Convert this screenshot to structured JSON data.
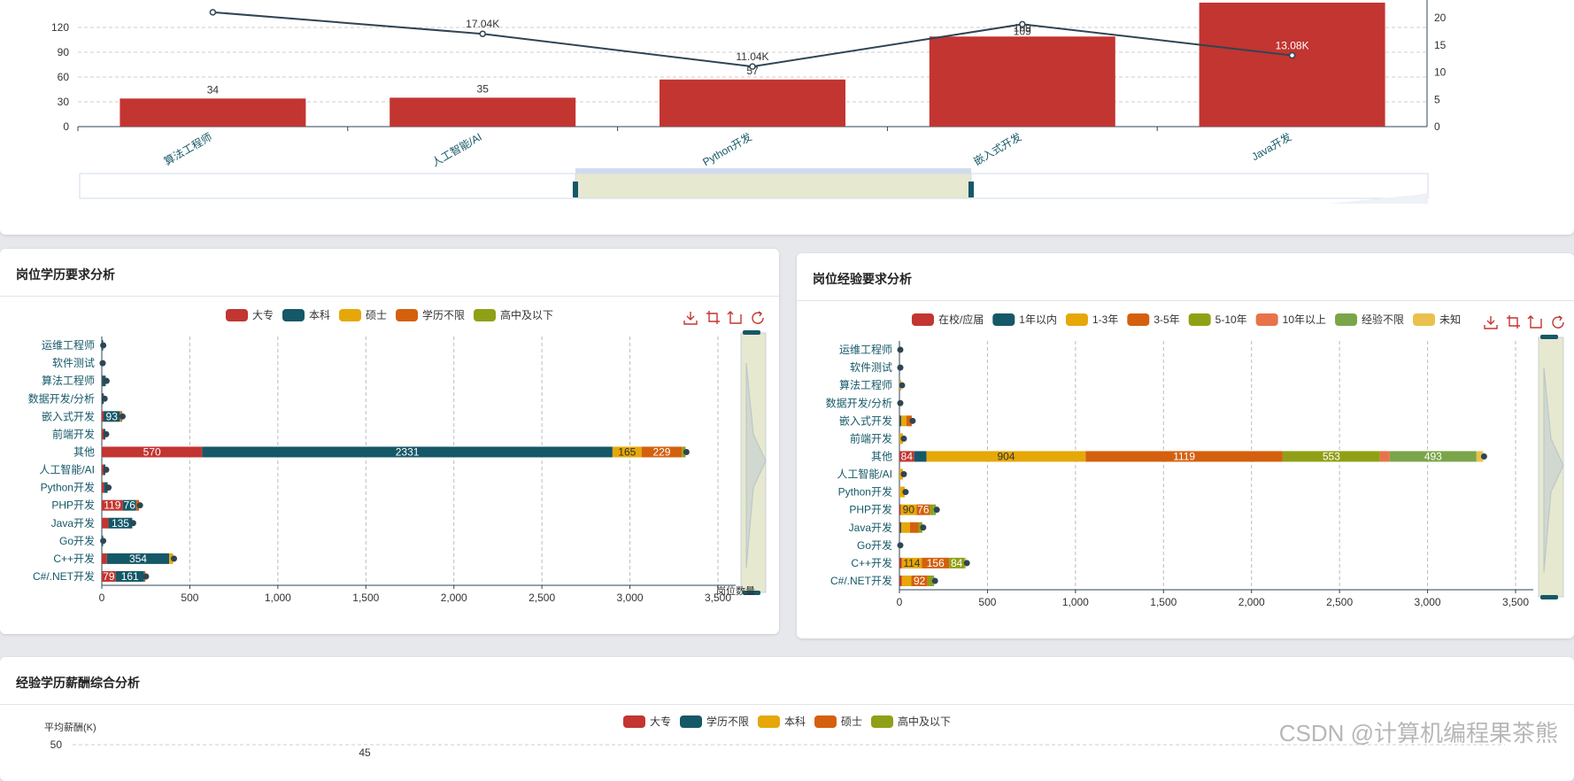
{
  "chart_data": [
    {
      "type": "bar",
      "title": "",
      "categories": [
        "算法工程师",
        "人工智能/AI",
        "Python开发",
        "嵌入式开发",
        "Java开发"
      ],
      "series": [
        {
          "values": [
            34,
            35,
            57,
            109,
            150
          ]
        },
        {
          "values": [
            21,
            17.04,
            11.04,
            18.8,
            13.08
          ]
        }
      ],
      "line_labels": [
        "",
        "17.04K",
        "11.04K",
        "",
        "13.08K"
      ],
      "yticks_left": [
        0,
        30,
        60,
        90,
        120
      ],
      "yticks_right": [
        0,
        5,
        10,
        15,
        20
      ],
      "ylim_left": [
        0,
        150
      ],
      "ylim_right": [
        0,
        20
      ],
      "colors": {
        "bar": "#c23531",
        "line": "#2f4554"
      }
    },
    {
      "type": "bar",
      "title": "岗位学历要求分析",
      "orientation": "horizontal-stacked",
      "categories": [
        "运维工程师",
        "软件测试",
        "算法工程师",
        "数据开发/分析",
        "嵌入式开发",
        "前端开发",
        "其他",
        "人工智能/AI",
        "Python开发",
        "PHP开发",
        "Java开发",
        "Go开发",
        "C++开发",
        "C#/.NET开发"
      ],
      "series": [
        {
          "name": "大专",
          "values": [
            0,
            0,
            2,
            1,
            10,
            10,
            570,
            10,
            13,
            119,
            38,
            0,
            29,
            79
          ]
        },
        {
          "name": "本科",
          "values": [
            3,
            0,
            20,
            10,
            93,
            10,
            2331,
            10,
            20,
            76,
            135,
            3,
            354,
            161
          ]
        },
        {
          "name": "硕士",
          "values": [
            0,
            0,
            0,
            0,
            5,
            0,
            165,
            0,
            0,
            0,
            0,
            0,
            22,
            0
          ]
        },
        {
          "name": "学历不限",
          "values": [
            0,
            0,
            0,
            0,
            5,
            0,
            229,
            0,
            0,
            17,
            0,
            0,
            0,
            6
          ]
        },
        {
          "name": "高中及以下",
          "values": [
            0,
            0,
            0,
            0,
            0,
            0,
            21,
            0,
            0,
            0,
            0,
            0,
            0,
            0
          ]
        }
      ],
      "xticks": [
        "0",
        "500",
        "1,000",
        "1,500",
        "2,000",
        "2,500",
        "3,000",
        "3,500"
      ],
      "xlim": [
        0,
        3500
      ],
      "slider_label": "岗位数量",
      "legend_position": "top-center",
      "colors": [
        "#c23531",
        "#155868",
        "#e6a808",
        "#d4600e",
        "#90a016"
      ]
    },
    {
      "type": "bar",
      "title": "岗位经验要求分析",
      "orientation": "horizontal-stacked",
      "categories": [
        "运维工程师",
        "软件测试",
        "算法工程师",
        "数据开发/分析",
        "嵌入式开发",
        "前端开发",
        "其他",
        "人工智能/AI",
        "Python开发",
        "PHP开发",
        "Java开发",
        "Go开发",
        "C++开发",
        "C#/.NET开发"
      ],
      "series": [
        {
          "name": "在校/应届",
          "values": [
            0,
            0,
            0,
            0,
            2,
            0,
            84,
            0,
            0,
            7,
            4,
            0,
            13,
            13
          ]
        },
        {
          "name": "1年以内",
          "values": [
            0,
            0,
            0,
            0,
            8,
            0,
            70,
            0,
            0,
            0,
            6,
            0,
            0,
            0
          ]
        },
        {
          "name": "1-3年",
          "values": [
            0,
            0,
            10,
            0,
            30,
            20,
            904,
            20,
            30,
            90,
            50,
            0,
            114,
            55
          ]
        },
        {
          "name": "3-5年",
          "values": [
            0,
            0,
            0,
            0,
            30,
            0,
            1119,
            0,
            0,
            76,
            48,
            0,
            156,
            92
          ]
        },
        {
          "name": "5-10年",
          "values": [
            0,
            0,
            0,
            0,
            0,
            0,
            553,
            0,
            0,
            22,
            22,
            0,
            84,
            28
          ]
        },
        {
          "name": "10年以上",
          "values": [
            0,
            0,
            0,
            0,
            0,
            0,
            55,
            0,
            0,
            0,
            0,
            0,
            0,
            0
          ]
        },
        {
          "name": "经验不限",
          "values": [
            0,
            0,
            0,
            0,
            0,
            0,
            493,
            0,
            0,
            12,
            0,
            0,
            3,
            9
          ]
        },
        {
          "name": "未知",
          "values": [
            0,
            0,
            0,
            0,
            0,
            0,
            38,
            0,
            0,
            0,
            0,
            0,
            8,
            0
          ]
        }
      ],
      "xticks": [
        "0",
        "500",
        "1,000",
        "1,500",
        "2,000",
        "2,500",
        "3,000",
        "3,500"
      ],
      "xlim": [
        0,
        3500
      ],
      "legend_position": "top-center",
      "colors": [
        "#c23531",
        "#155868",
        "#e6a808",
        "#d4600e",
        "#90a016",
        "#e8734a",
        "#7ba54a",
        "#e9c14c"
      ]
    },
    {
      "type": "line",
      "title": "经验学历薪酬综合分析",
      "series": [
        {
          "name": "大专"
        },
        {
          "name": "学历不限"
        },
        {
          "name": "本科"
        },
        {
          "name": "硕士"
        },
        {
          "name": "高中及以下"
        }
      ],
      "ylabel": "平均薪酬(K)",
      "yticks": [
        50
      ],
      "partial_label": "45",
      "legend_position": "top-center",
      "colors": [
        "#c23531",
        "#155868",
        "#e6a808",
        "#d4600e",
        "#90a016"
      ]
    }
  ],
  "panels": {
    "edu_title": "岗位学历要求分析",
    "exp_title": "岗位经验要求分析",
    "combo_title": "经验学历薪酬综合分析"
  },
  "toolbox": [
    "download-icon",
    "zoom-icon",
    "zoom-reset-icon",
    "refresh-icon"
  ],
  "watermark": "CSDN @计算机编程果茶熊"
}
